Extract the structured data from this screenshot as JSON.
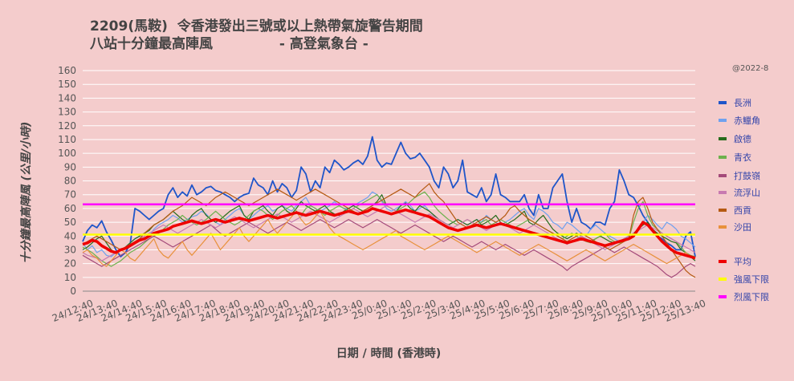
{
  "chart_data": {
    "type": "line",
    "title_line1": "2209(馬鞍)  令香港發出三號或以上熱帶氣旋警告期間",
    "title_line2": "八站十分鐘最高陣風              - 高登氣象台 -",
    "watermark": "@2022-8",
    "xlabel": "日期 / 時間 (香港時)",
    "ylabel": "十分鐘最高陣風 (公里/小時)",
    "ylim": [
      0,
      160
    ],
    "yticks": [
      0,
      10,
      20,
      30,
      40,
      50,
      60,
      70,
      80,
      90,
      100,
      110,
      120,
      130,
      140,
      150,
      160
    ],
    "grid": true,
    "legend_position": "right",
    "x_tick_labels": [
      "24/12:40",
      "24/13:40",
      "24/14:40",
      "24/15:40",
      "24/16:40",
      "24/17:40",
      "24/18:40",
      "24/19:40",
      "24/20:40",
      "24/21:40",
      "24/22:40",
      "24/23:40",
      "25/0:40",
      "25/1:40",
      "25/2:40",
      "25/3:40",
      "25/4:40",
      "25/5:40",
      "25/6:40",
      "25/7:40",
      "25/8:40",
      "25/9:40",
      "25/10:40",
      "25/11:40",
      "25/12:40",
      "25/13:40"
    ],
    "series": [
      {
        "name": "長洲",
        "color": "#1f55c9",
        "width": 1.8,
        "values": [
          36,
          44,
          48,
          46,
          51,
          43,
          37,
          30,
          25,
          28,
          34,
          60,
          58,
          55,
          52,
          55,
          58,
          60,
          70,
          75,
          68,
          72,
          69,
          77,
          70,
          72,
          75,
          76,
          73,
          72,
          70,
          68,
          65,
          68,
          70,
          71,
          82,
          77,
          75,
          70,
          80,
          72,
          78,
          75,
          68,
          73,
          90,
          85,
          72,
          80,
          75,
          90,
          86,
          95,
          92,
          88,
          90,
          93,
          95,
          92,
          98,
          112,
          95,
          90,
          93,
          92,
          100,
          108,
          100,
          96,
          97,
          100,
          95,
          90,
          80,
          75,
          90,
          85,
          75,
          80,
          95,
          72,
          70,
          68,
          75,
          65,
          70,
          85,
          70,
          68,
          65,
          65,
          65,
          70,
          60,
          55,
          70,
          60,
          60,
          75,
          80,
          85,
          65,
          50,
          60,
          50,
          48,
          45,
          50,
          50,
          48,
          60,
          65,
          88,
          80,
          70,
          68,
          62,
          55,
          50,
          45,
          40,
          38,
          35,
          33,
          30,
          30,
          40,
          43,
          25
        ]
      },
      {
        "name": "赤鱲角",
        "color": "#6fa1ef",
        "width": 1.2,
        "values": [
          35,
          30,
          33,
          28,
          30,
          26,
          25,
          28,
          30,
          32,
          35,
          38,
          40,
          42,
          40,
          45,
          48,
          50,
          52,
          55,
          53,
          50,
          52,
          54,
          55,
          58,
          56,
          52,
          50,
          48,
          52,
          55,
          58,
          60,
          55,
          52,
          55,
          58,
          60,
          62,
          58,
          60,
          62,
          60,
          58,
          62,
          65,
          68,
          62,
          60,
          58,
          60,
          62,
          65,
          62,
          60,
          60,
          62,
          64,
          66,
          68,
          72,
          70,
          65,
          60,
          58,
          60,
          62,
          65,
          62,
          58,
          60,
          62,
          58,
          55,
          52,
          50,
          48,
          50,
          52,
          50,
          48,
          50,
          52,
          50,
          55,
          52,
          50,
          48,
          50,
          52,
          55,
          58,
          60,
          55,
          52,
          60,
          58,
          55,
          50,
          48,
          45,
          50,
          48,
          45,
          42,
          40,
          45,
          48,
          45,
          42,
          40,
          38,
          36,
          38,
          40,
          42,
          45,
          50,
          55,
          52,
          48,
          45,
          50,
          48,
          45,
          40,
          38,
          35,
          32
        ]
      },
      {
        "name": "啟德",
        "color": "#276c1d",
        "width": 1.2,
        "values": [
          30,
          32,
          35,
          38,
          40,
          35,
          30,
          28,
          30,
          32,
          35,
          38,
          40,
          42,
          44,
          48,
          50,
          52,
          55,
          58,
          55,
          52,
          50,
          55,
          58,
          60,
          55,
          52,
          50,
          52,
          55,
          58,
          60,
          62,
          55,
          52,
          58,
          60,
          62,
          58,
          55,
          60,
          62,
          58,
          56,
          60,
          65,
          62,
          60,
          58,
          60,
          62,
          58,
          56,
          55,
          58,
          60,
          62,
          60,
          58,
          60,
          62,
          65,
          70,
          62,
          60,
          58,
          62,
          64,
          60,
          58,
          62,
          60,
          58,
          55,
          52,
          50,
          48,
          50,
          52,
          50,
          48,
          50,
          52,
          48,
          50,
          52,
          55,
          50,
          48,
          50,
          52,
          55,
          58,
          50,
          48,
          52,
          55,
          50,
          45,
          42,
          40,
          38,
          40,
          42,
          40,
          38,
          36,
          38,
          40,
          38,
          36,
          35,
          36,
          38,
          40,
          42,
          45,
          48,
          50,
          45,
          42,
          40,
          38,
          36,
          35,
          30,
          28,
          25,
          22
        ]
      },
      {
        "name": "青衣",
        "color": "#6db14d",
        "width": 1.2,
        "values": [
          32,
          30,
          28,
          25,
          22,
          20,
          18,
          20,
          22,
          25,
          28,
          30,
          32,
          35,
          38,
          40,
          42,
          45,
          48,
          50,
          52,
          55,
          52,
          50,
          48,
          50,
          52,
          55,
          58,
          55,
          52,
          50,
          48,
          50,
          52,
          55,
          58,
          60,
          58,
          55,
          52,
          55,
          58,
          60,
          62,
          58,
          55,
          60,
          62,
          60,
          58,
          55,
          58,
          60,
          62,
          60,
          58,
          60,
          62,
          64,
          66,
          68,
          70,
          66,
          62,
          60,
          58,
          60,
          62,
          65,
          68,
          70,
          72,
          68,
          62,
          58,
          55,
          52,
          50,
          48,
          50,
          52,
          50,
          48,
          50,
          52,
          48,
          50,
          52,
          50,
          48,
          46,
          48,
          50,
          52,
          50,
          48,
          46,
          44,
          42,
          40,
          38,
          40,
          42,
          40,
          38,
          36,
          35,
          38,
          40,
          42,
          38,
          36,
          35,
          36,
          38,
          50,
          60,
          65,
          55,
          48,
          45,
          42,
          40,
          38,
          36,
          32,
          28,
          26,
          25
        ]
      },
      {
        "name": "打鼓嶺",
        "color": "#a44a7a",
        "width": 1.2,
        "values": [
          26,
          24,
          22,
          20,
          18,
          20,
          22,
          24,
          26,
          28,
          30,
          32,
          34,
          36,
          38,
          40,
          38,
          36,
          34,
          32,
          34,
          36,
          38,
          40,
          42,
          44,
          46,
          48,
          45,
          42,
          40,
          42,
          44,
          46,
          48,
          50,
          48,
          46,
          44,
          42,
          44,
          46,
          48,
          50,
          48,
          46,
          44,
          46,
          48,
          50,
          52,
          50,
          48,
          46,
          48,
          50,
          52,
          50,
          48,
          46,
          48,
          50,
          52,
          50,
          48,
          46,
          44,
          42,
          44,
          46,
          48,
          46,
          44,
          42,
          40,
          38,
          36,
          38,
          40,
          38,
          36,
          34,
          32,
          34,
          36,
          34,
          32,
          30,
          32,
          34,
          32,
          30,
          28,
          26,
          28,
          30,
          28,
          26,
          24,
          22,
          20,
          18,
          15,
          18,
          20,
          22,
          24,
          26,
          28,
          30,
          32,
          30,
          28,
          30,
          32,
          30,
          28,
          26,
          24,
          22,
          20,
          18,
          15,
          12,
          10,
          12,
          15,
          18,
          20,
          18
        ]
      },
      {
        "name": "流浮山",
        "color": "#c87ab0",
        "width": 1.2,
        "values": [
          28,
          26,
          25,
          24,
          22,
          24,
          26,
          28,
          30,
          32,
          34,
          36,
          38,
          40,
          42,
          44,
          46,
          48,
          46,
          44,
          42,
          44,
          46,
          48,
          50,
          52,
          50,
          48,
          46,
          48,
          50,
          52,
          54,
          52,
          50,
          48,
          46,
          48,
          50,
          52,
          54,
          56,
          54,
          52,
          50,
          52,
          54,
          56,
          58,
          56,
          54,
          52,
          50,
          52,
          54,
          56,
          58,
          60,
          58,
          56,
          54,
          56,
          58,
          60,
          62,
          60,
          58,
          56,
          54,
          52,
          50,
          52,
          54,
          56,
          54,
          52,
          50,
          48,
          46,
          48,
          50,
          52,
          50,
          48,
          46,
          44,
          46,
          48,
          50,
          48,
          46,
          44,
          42,
          44,
          46,
          48,
          46,
          44,
          42,
          40,
          38,
          36,
          34,
          36,
          38,
          40,
          38,
          36,
          34,
          32,
          30,
          32,
          34,
          36,
          38,
          40,
          42,
          44,
          46,
          48,
          46,
          44,
          42,
          40,
          38,
          36,
          34,
          32,
          30,
          28
        ]
      },
      {
        "name": "西貢",
        "color": "#b55a12",
        "width": 1.2,
        "values": [
          34,
          36,
          38,
          40,
          38,
          36,
          34,
          32,
          30,
          32,
          34,
          36,
          38,
          42,
          45,
          48,
          50,
          52,
          55,
          58,
          60,
          62,
          65,
          68,
          66,
          64,
          62,
          65,
          68,
          70,
          72,
          70,
          68,
          66,
          64,
          62,
          64,
          66,
          68,
          70,
          72,
          74,
          72,
          70,
          68,
          66,
          68,
          70,
          72,
          74,
          72,
          70,
          68,
          66,
          64,
          62,
          60,
          58,
          56,
          58,
          60,
          62,
          64,
          66,
          68,
          70,
          72,
          74,
          72,
          70,
          68,
          72,
          75,
          78,
          72,
          68,
          65,
          60,
          55,
          50,
          48,
          46,
          48,
          50,
          52,
          54,
          52,
          50,
          52,
          55,
          60,
          62,
          58,
          55,
          52,
          50,
          48,
          46,
          44,
          42,
          40,
          38,
          36,
          38,
          40,
          42,
          40,
          38,
          36,
          34,
          32,
          30,
          32,
          34,
          36,
          38,
          55,
          65,
          68,
          60,
          50,
          45,
          40,
          35,
          30,
          25,
          20,
          15,
          12,
          10
        ]
      },
      {
        "name": "沙田",
        "color": "#e8913c",
        "width": 1.2,
        "values": [
          28,
          30,
          26,
          24,
          20,
          18,
          22,
          26,
          30,
          28,
          24,
          22,
          26,
          30,
          34,
          38,
          30,
          26,
          24,
          28,
          32,
          36,
          30,
          26,
          30,
          34,
          38,
          42,
          36,
          30,
          34,
          38,
          42,
          46,
          40,
          36,
          40,
          44,
          48,
          52,
          46,
          42,
          46,
          50,
          54,
          58,
          52,
          48,
          50,
          54,
          58,
          52,
          46,
          42,
          40,
          38,
          36,
          34,
          32,
          30,
          32,
          34,
          36,
          38,
          40,
          42,
          44,
          40,
          38,
          36,
          34,
          32,
          30,
          32,
          34,
          36,
          38,
          40,
          38,
          36,
          34,
          32,
          30,
          28,
          30,
          32,
          34,
          36,
          34,
          32,
          30,
          28,
          26,
          28,
          30,
          32,
          34,
          32,
          30,
          28,
          26,
          24,
          22,
          24,
          26,
          28,
          30,
          28,
          26,
          24,
          22,
          24,
          26,
          28,
          30,
          32,
          34,
          32,
          30,
          28,
          26,
          24,
          22,
          20,
          22,
          24,
          26,
          28,
          25,
          24
        ]
      },
      {
        "name": "平均",
        "color": "#ee0000",
        "width": 3.5,
        "values": [
          34,
          35,
          37,
          36,
          33,
          31,
          29,
          28,
          30,
          31,
          33,
          35,
          37,
          38,
          40,
          42,
          43,
          44,
          45,
          47,
          48,
          49,
          50,
          51,
          50,
          49,
          50,
          51,
          52,
          51,
          50,
          51,
          52,
          53,
          52,
          51,
          52,
          53,
          54,
          55,
          54,
          53,
          54,
          55,
          56,
          57,
          56,
          55,
          56,
          57,
          58,
          57,
          56,
          55,
          56,
          57,
          58,
          57,
          56,
          57,
          58,
          60,
          59,
          58,
          57,
          56,
          57,
          58,
          59,
          58,
          57,
          56,
          55,
          54,
          52,
          50,
          48,
          46,
          45,
          44,
          45,
          46,
          47,
          48,
          47,
          46,
          47,
          48,
          49,
          48,
          47,
          46,
          45,
          44,
          43,
          42,
          41,
          40,
          39,
          38,
          37,
          36,
          35,
          36,
          37,
          38,
          37,
          36,
          35,
          34,
          33,
          34,
          35,
          36,
          37,
          38,
          40,
          45,
          50,
          48,
          44,
          40,
          36,
          33,
          30,
          28,
          27,
          26,
          25,
          24
        ]
      },
      {
        "name": "強風下限",
        "color": "#ffff00",
        "width": 2.5,
        "values": [
          41,
          41
        ]
      },
      {
        "name": "烈風下限",
        "color": "#ff00ff",
        "width": 2.5,
        "values": [
          63,
          63
        ]
      }
    ]
  }
}
